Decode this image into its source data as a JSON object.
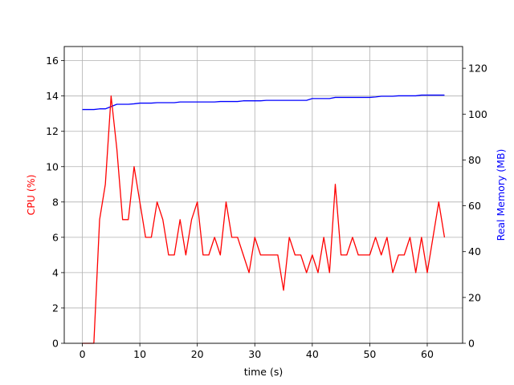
{
  "chart_data": {
    "type": "line",
    "title": "",
    "xlabel": "time (s)",
    "ylabel_left": "CPU (%)",
    "ylabel_right": "Real Memory (MB)",
    "xlim": [
      -3.15,
      66.15
    ],
    "ylim_left": [
      0,
      16.8
    ],
    "ylim_right": [
      0,
      129.5
    ],
    "xticks": [
      0,
      10,
      20,
      30,
      40,
      50,
      60
    ],
    "yticks_left": [
      0,
      2,
      4,
      6,
      8,
      10,
      12,
      14,
      16
    ],
    "yticks_right": [
      0,
      20,
      40,
      60,
      80,
      100,
      120
    ],
    "grid": true,
    "x": [
      0,
      1,
      2,
      3,
      4,
      5,
      6,
      7,
      8,
      9,
      10,
      11,
      12,
      13,
      14,
      15,
      16,
      17,
      18,
      19,
      20,
      21,
      22,
      23,
      24,
      25,
      26,
      27,
      28,
      29,
      30,
      31,
      32,
      33,
      34,
      35,
      36,
      37,
      38,
      39,
      40,
      41,
      42,
      43,
      44,
      45,
      46,
      47,
      48,
      49,
      50,
      51,
      52,
      53,
      54,
      55,
      56,
      57,
      58,
      59,
      60,
      61,
      62,
      63
    ],
    "series": [
      {
        "axis": "left",
        "color": "#ff0000",
        "values": [
          0,
          0,
          0,
          7,
          9,
          14,
          11,
          7,
          7,
          10,
          8,
          6,
          6,
          8,
          7,
          5,
          5,
          7,
          5,
          7,
          8,
          5,
          5,
          6,
          5,
          8,
          6,
          6,
          5,
          4,
          6,
          5,
          5,
          5,
          5,
          3,
          6,
          5,
          5,
          4,
          5,
          4,
          6,
          4,
          9,
          5,
          5,
          6,
          5,
          5,
          5,
          6,
          5,
          6,
          4,
          5,
          5,
          6,
          4,
          6,
          4,
          6,
          8,
          6
        ]
      },
      {
        "axis": "right",
        "color": "#0000ff",
        "values": [
          102,
          102,
          102,
          102.3,
          102.3,
          103.3,
          104.3,
          104.3,
          104.3,
          104.5,
          104.8,
          104.8,
          104.8,
          105,
          105,
          105,
          105,
          105.3,
          105.3,
          105.3,
          105.3,
          105.3,
          105.3,
          105.3,
          105.5,
          105.5,
          105.5,
          105.5,
          105.8,
          105.8,
          105.8,
          105.8,
          106,
          106,
          106,
          106,
          106,
          106,
          106,
          106,
          106.8,
          106.8,
          106.8,
          106.8,
          107.3,
          107.3,
          107.3,
          107.3,
          107.3,
          107.3,
          107.3,
          107.5,
          107.8,
          107.8,
          107.8,
          108,
          108,
          108,
          108,
          108.3,
          108.3,
          108.3,
          108.3,
          108.3
        ]
      }
    ]
  },
  "colors": {
    "cpu_label": "#ff0000",
    "memory_label": "#0000ff",
    "grid": "#b0b0b0",
    "axes": "#000000"
  }
}
